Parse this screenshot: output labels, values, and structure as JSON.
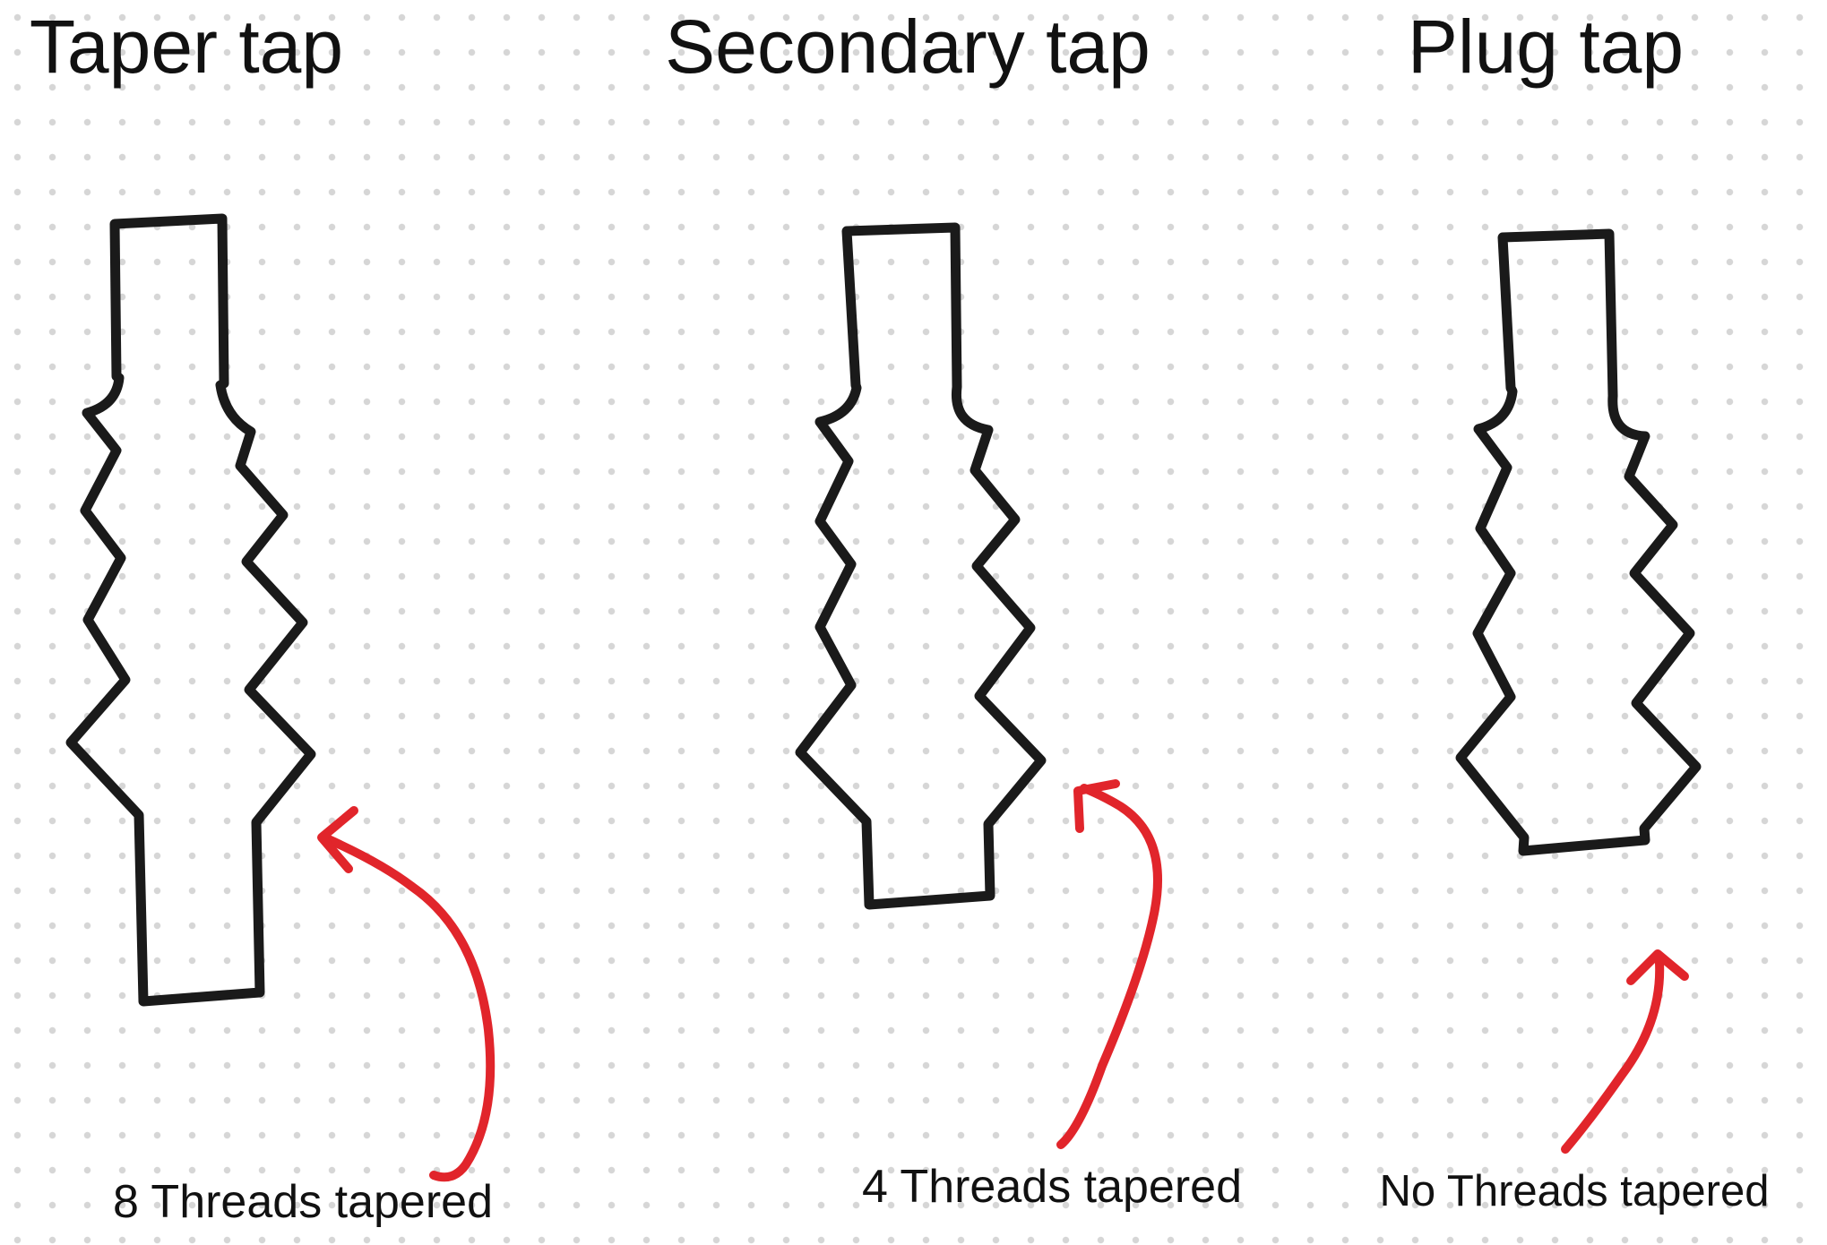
{
  "taps": [
    {
      "title": "Taper tap",
      "caption": "8 Threads tapered"
    },
    {
      "title": "Secondary tap",
      "caption": "4 Threads tapered"
    },
    {
      "title": "Plug tap",
      "caption": "No Threads tapered"
    }
  ],
  "colors": {
    "outline": "#1a1a1a",
    "arrow": "#e1252b",
    "dots": "#d6d6d6",
    "background": "#ffffff"
  }
}
